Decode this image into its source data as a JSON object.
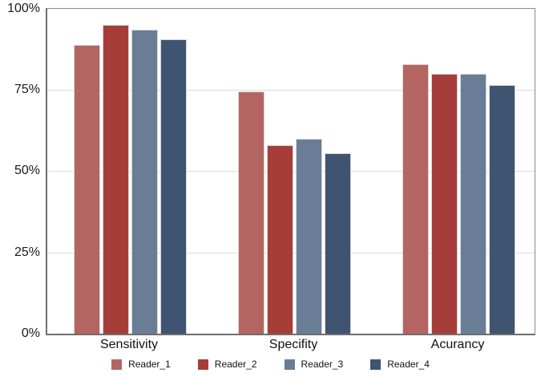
{
  "chart_data": {
    "type": "bar",
    "title": "",
    "xlabel": "",
    "ylabel": "",
    "ylim": [
      0,
      100
    ],
    "grid": true,
    "legend_position": "bottom",
    "y_ticks": [
      "100%",
      "75%",
      "50%",
      "25%",
      "0%"
    ],
    "categories": [
      "Sensitivity",
      "Specifity",
      "Acurancy"
    ],
    "series": [
      {
        "name": "Reader_1",
        "color": "#b56561",
        "values": [
          89.0,
          74.5,
          83.0
        ]
      },
      {
        "name": "Reader_2",
        "color": "#a63d38",
        "values": [
          95.0,
          58.0,
          80.0
        ]
      },
      {
        "name": "Reader_3",
        "color": "#697d97",
        "values": [
          93.5,
          60.0,
          80.0
        ]
      },
      {
        "name": "Reader_4",
        "color": "#3e5470",
        "values": [
          90.5,
          55.5,
          76.5
        ]
      }
    ],
    "colors": {
      "gridline": "#dcdcdc",
      "plot_border": "#8a8a8a",
      "axis_line": "#6e6e6e",
      "background": "#ffffff",
      "text": "#111111"
    }
  }
}
